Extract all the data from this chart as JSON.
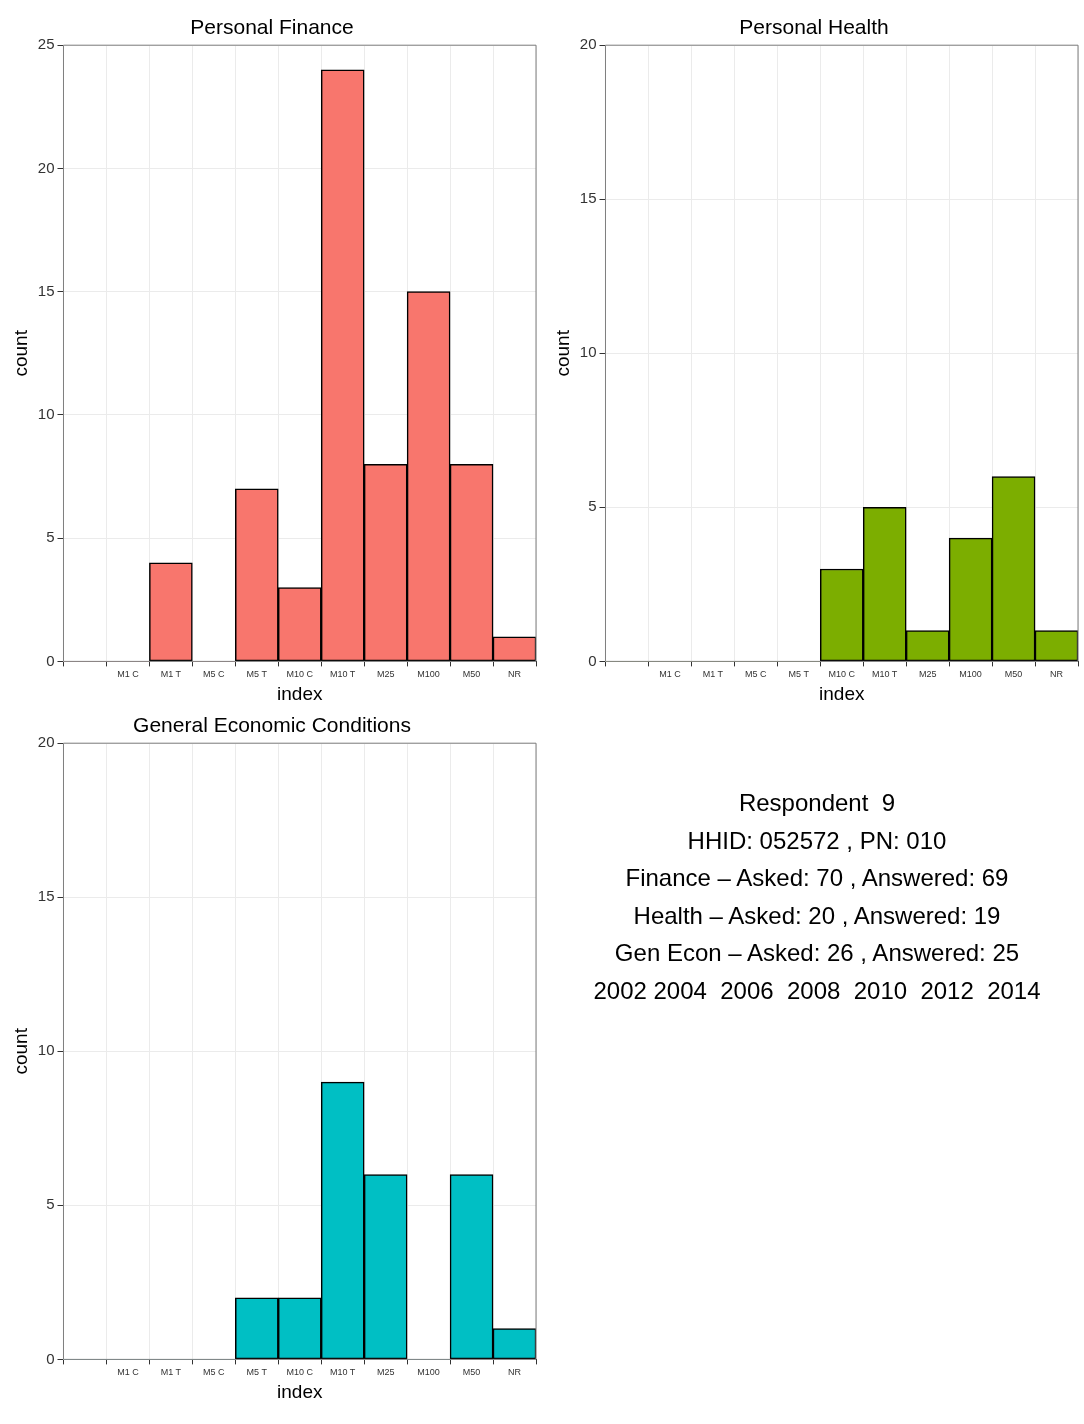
{
  "chart_data": [
    {
      "type": "bar",
      "title": "Personal Finance",
      "xlabel": "index",
      "ylabel": "count",
      "categories": [
        null,
        "M1 C",
        "M1 T",
        "M5 C",
        "M5 T",
        "M10 C",
        "M10 T",
        "M25",
        "M100",
        "M50",
        "NR"
      ],
      "values": [
        0,
        0,
        4,
        0,
        7,
        3,
        24,
        8,
        15,
        8,
        1
      ],
      "color": "#f8766d",
      "ylim": [
        0,
        25
      ],
      "yticks": [
        0,
        5,
        10,
        15,
        20,
        25
      ],
      "grid": true,
      "legend": false
    },
    {
      "type": "bar",
      "title": "Personal Health",
      "xlabel": "index",
      "ylabel": "count",
      "categories": [
        null,
        "M1 C",
        "M1 T",
        "M5 C",
        "M5 T",
        "M10 C",
        "M10 T",
        "M25",
        "M100",
        "M50",
        "NR"
      ],
      "values": [
        0,
        0,
        0,
        0,
        0,
        3,
        5,
        1,
        4,
        6,
        1
      ],
      "color": "#7cae00",
      "ylim": [
        0,
        20
      ],
      "yticks": [
        0,
        5,
        10,
        15,
        20
      ],
      "grid": true,
      "legend": false
    },
    {
      "type": "bar",
      "title": "General Economic Conditions",
      "xlabel": "index",
      "ylabel": "count",
      "categories": [
        null,
        "M1 C",
        "M1 T",
        "M5 C",
        "M5 T",
        "M10 C",
        "M10 T",
        "M25",
        "M100",
        "M50",
        "NR"
      ],
      "values": [
        0,
        0,
        0,
        0,
        2,
        2,
        9,
        6,
        0,
        6,
        1
      ],
      "color": "#00bfc4",
      "ylim": [
        0,
        20
      ],
      "yticks": [
        0,
        5,
        10,
        15,
        20
      ],
      "grid": true,
      "legend": false
    },
    {
      "type": "other",
      "annotations": [
        "Respondent  9",
        "HHID: 052572 , PN: 010",
        "Finance – Asked: 70 , Answered: 69",
        "Health – Asked: 20 , Answered: 19",
        "Gen Econ – Asked: 26 , Answered: 25",
        "2002 2004  2006  2008  2010  2012  2014"
      ]
    }
  ]
}
